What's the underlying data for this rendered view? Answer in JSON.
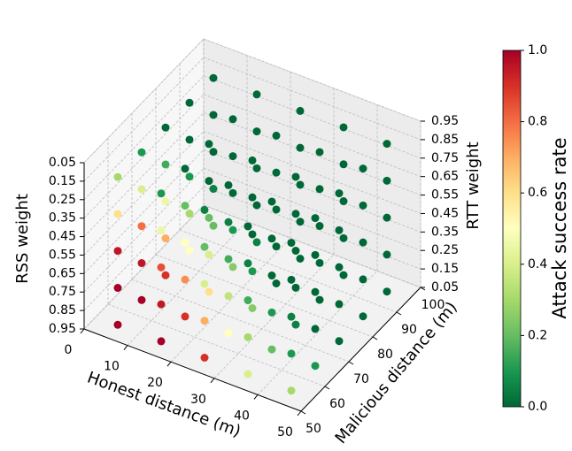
{
  "chart_data": {
    "type": "scatter3d",
    "xlabel": "Honest distance (m)",
    "ylabel": "Malicious distance (m)",
    "zlabel": "RTT weight",
    "z2label": "RSS weight",
    "colorbar_label": "Attack success rate",
    "colormap": "RdYlGn",
    "xlim": [
      0,
      50
    ],
    "xticks": [
      0,
      10,
      20,
      30,
      40,
      50
    ],
    "ylim": [
      50,
      100
    ],
    "yticks": [
      50,
      60,
      70,
      80,
      90,
      100
    ],
    "zlim": [
      0.05,
      0.95
    ],
    "zticks": [
      0.05,
      0.15,
      0.25,
      0.35,
      0.45,
      0.55,
      0.65,
      0.75,
      0.85,
      0.95
    ],
    "z2lim": [
      0.95,
      0.05
    ],
    "z2ticks": [
      0.05,
      0.15,
      0.25,
      0.35,
      0.45,
      0.55,
      0.65,
      0.75,
      0.85,
      0.95
    ],
    "clim": [
      0,
      1
    ],
    "cticks": [
      {
        "value": 0,
        "label": "0.0"
      },
      {
        "value": 0.2,
        "label": "0.2"
      },
      {
        "value": 0.4,
        "label": "0.4"
      },
      {
        "value": 0.6,
        "label": "0.6"
      },
      {
        "value": 0.8,
        "label": "0.8"
      },
      {
        "value": 1,
        "label": "1.0"
      }
    ],
    "grid": true,
    "x": [
      5,
      5,
      5,
      5,
      5,
      15,
      15,
      15,
      15,
      15,
      25,
      25,
      25,
      25,
      25,
      35,
      35,
      35,
      35,
      35,
      45,
      45,
      45,
      45,
      45,
      5,
      5,
      5,
      5,
      5,
      15,
      15,
      15,
      15,
      15,
      25,
      25,
      25,
      25,
      25,
      35,
      35,
      35,
      35,
      35,
      45,
      45,
      45,
      45,
      45,
      5,
      5,
      5,
      5,
      5,
      15,
      15,
      15,
      15,
      15,
      25,
      25,
      25,
      25,
      25,
      35,
      35,
      35,
      35,
      35,
      45,
      45,
      45,
      45,
      45,
      5,
      5,
      5,
      5,
      5,
      15,
      15,
      15,
      15,
      15,
      25,
      25,
      25,
      25,
      25,
      35,
      35,
      35,
      35,
      35,
      45,
      45,
      45,
      45,
      45,
      5,
      5,
      5,
      5,
      5,
      15,
      15,
      15,
      15,
      15,
      25,
      25,
      25,
      25,
      25,
      35,
      35,
      35,
      35,
      35,
      45,
      45,
      45,
      45,
      45
    ],
    "y": [
      55,
      55,
      55,
      55,
      55,
      55,
      55,
      55,
      55,
      55,
      55,
      55,
      55,
      55,
      55,
      55,
      55,
      55,
      55,
      55,
      55,
      55,
      55,
      55,
      55,
      65,
      65,
      65,
      65,
      65,
      65,
      65,
      65,
      65,
      65,
      65,
      65,
      65,
      65,
      65,
      65,
      65,
      65,
      65,
      65,
      65,
      65,
      65,
      65,
      65,
      75,
      75,
      75,
      75,
      75,
      75,
      75,
      75,
      75,
      75,
      75,
      75,
      75,
      75,
      75,
      75,
      75,
      75,
      75,
      75,
      75,
      75,
      75,
      75,
      75,
      85,
      85,
      85,
      85,
      85,
      85,
      85,
      85,
      85,
      85,
      85,
      85,
      85,
      85,
      85,
      85,
      85,
      85,
      85,
      85,
      85,
      85,
      85,
      85,
      85,
      95,
      95,
      95,
      95,
      95,
      95,
      95,
      95,
      95,
      95,
      95,
      95,
      95,
      95,
      95,
      95,
      95,
      95,
      95,
      95,
      95,
      95,
      95,
      95,
      95
    ],
    "z": [
      0.05,
      0.25,
      0.45,
      0.65,
      0.85,
      0.05,
      0.25,
      0.45,
      0.65,
      0.85,
      0.05,
      0.25,
      0.45,
      0.65,
      0.85,
      0.05,
      0.25,
      0.45,
      0.65,
      0.85,
      0.05,
      0.25,
      0.45,
      0.65,
      0.85,
      0.05,
      0.25,
      0.45,
      0.65,
      0.85,
      0.05,
      0.25,
      0.45,
      0.65,
      0.85,
      0.05,
      0.25,
      0.45,
      0.65,
      0.85,
      0.05,
      0.25,
      0.45,
      0.65,
      0.85,
      0.05,
      0.25,
      0.45,
      0.65,
      0.85,
      0.05,
      0.25,
      0.45,
      0.65,
      0.85,
      0.05,
      0.25,
      0.45,
      0.65,
      0.85,
      0.05,
      0.25,
      0.45,
      0.65,
      0.85,
      0.05,
      0.25,
      0.45,
      0.65,
      0.85,
      0.05,
      0.25,
      0.45,
      0.65,
      0.85,
      0.05,
      0.25,
      0.45,
      0.65,
      0.85,
      0.05,
      0.25,
      0.45,
      0.65,
      0.85,
      0.05,
      0.25,
      0.45,
      0.65,
      0.85,
      0.05,
      0.25,
      0.45,
      0.65,
      0.85,
      0.05,
      0.25,
      0.45,
      0.65,
      0.85,
      0.05,
      0.25,
      0.45,
      0.65,
      0.85,
      0.05,
      0.25,
      0.45,
      0.65,
      0.85,
      0.05,
      0.25,
      0.45,
      0.65,
      0.85,
      0.05,
      0.25,
      0.45,
      0.65,
      0.85,
      0.05,
      0.25,
      0.45,
      0.65,
      0.85
    ],
    "values": [
      1,
      1,
      0.95,
      0.6,
      0.3,
      1,
      0.95,
      0.85,
      0.45,
      0.1,
      0.9,
      0.7,
      0.4,
      0.2,
      0.05,
      0.4,
      0.3,
      0.15,
      0.05,
      0,
      0.3,
      0.1,
      0.05,
      0,
      0,
      1,
      0.95,
      0.8,
      0.4,
      0.1,
      0.9,
      0.75,
      0.5,
      0.2,
      0,
      0.5,
      0.35,
      0.15,
      0.05,
      0,
      0.2,
      0.1,
      0,
      0,
      0,
      0.1,
      0,
      0,
      0,
      0,
      0.9,
      0.7,
      0.45,
      0.15,
      0,
      0.6,
      0.4,
      0.2,
      0,
      0,
      0.25,
      0.1,
      0,
      0,
      0,
      0.05,
      0,
      0,
      0,
      0,
      0,
      0,
      0,
      0,
      0,
      0.5,
      0.3,
      0.1,
      0,
      0,
      0.25,
      0.1,
      0,
      0,
      0,
      0,
      0,
      0,
      0,
      0,
      0,
      0,
      0,
      0,
      0,
      0,
      0,
      0,
      0,
      0,
      0.2,
      0.05,
      0,
      0,
      0,
      0.05,
      0,
      0,
      0,
      0,
      0,
      0,
      0,
      0,
      0,
      0,
      0,
      0,
      0,
      0,
      0,
      0,
      0,
      0,
      0
    ]
  }
}
